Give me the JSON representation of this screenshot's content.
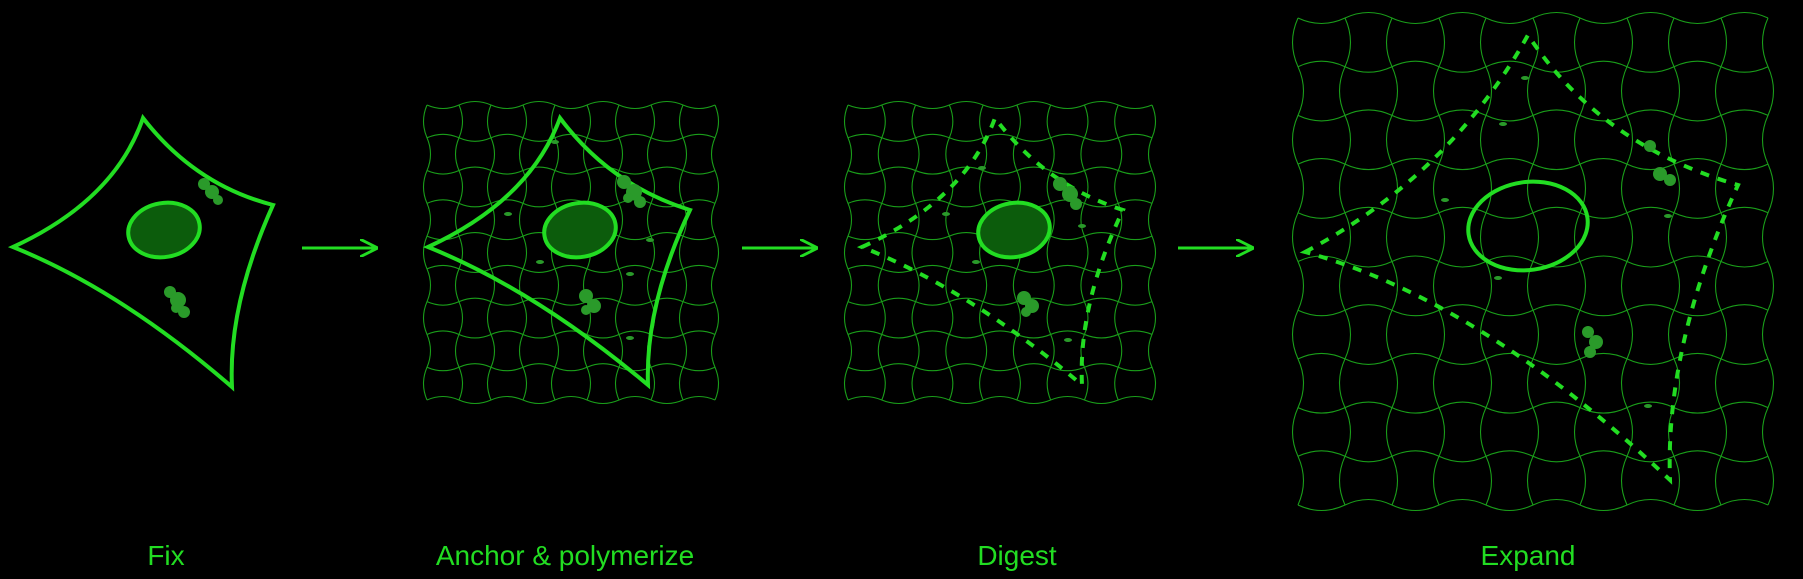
{
  "stages": [
    {
      "label": "Fix"
    },
    {
      "label": "Anchor & polymerize"
    },
    {
      "label": "Digest"
    },
    {
      "label": "Expand"
    }
  ],
  "colors": {
    "background": "#000000",
    "outline": "#22dd22",
    "mesh": "#1a9e1a",
    "nucleus_fill": "#0c5c0c",
    "blob": "#2a9a2a"
  }
}
